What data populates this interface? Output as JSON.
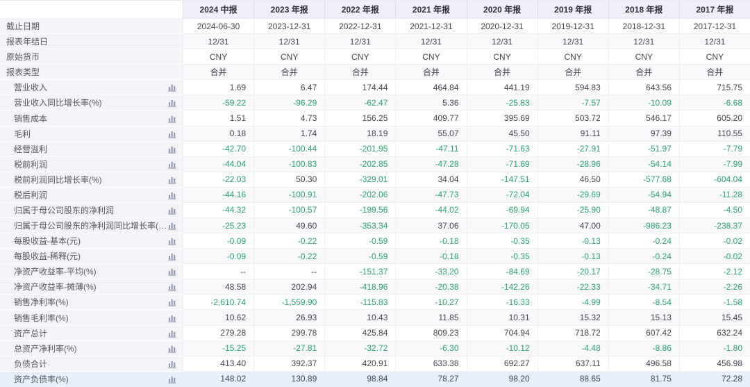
{
  "colors": {
    "negative_value": "#27a56f",
    "positive_value": "#44444f",
    "header_bg": "#efeff7",
    "label_column_bg": "#f4f4f8",
    "stripe_bg": "#f8f8fa",
    "highlight_row_bg": "#e6f0fa",
    "icon": "#8e97ad"
  },
  "table": {
    "columns": [
      "2024 中报",
      "2023 年报",
      "2022 年报",
      "2021 年报",
      "2020 年报",
      "2019 年报",
      "2018 年报",
      "2017 年报"
    ],
    "info_rows": [
      {
        "label": "截止日期",
        "values": [
          "2024-06-30",
          "2023-12-31",
          "2022-12-31",
          "2021-12-31",
          "2020-12-31",
          "2019-12-31",
          "2018-12-31",
          "2017-12-31"
        ]
      },
      {
        "label": "报表年结日",
        "values": [
          "12/31",
          "12/31",
          "12/31",
          "12/31",
          "12/31",
          "12/31",
          "12/31",
          "12/31"
        ]
      },
      {
        "label": "原始货币",
        "values": [
          "CNY",
          "CNY",
          "CNY",
          "CNY",
          "CNY",
          "CNY",
          "CNY",
          "CNY"
        ]
      },
      {
        "label": "报表类型",
        "values": [
          "合并",
          "合并",
          "合并",
          "合并",
          "合并",
          "合并",
          "合并",
          "合并"
        ]
      }
    ],
    "metric_rows": [
      {
        "label": "营业收入",
        "icon": "bar-chart-icon",
        "values": [
          "1.69",
          "6.47",
          "174.44",
          "464.84",
          "441.19",
          "594.83",
          "643.56",
          "715.75"
        ]
      },
      {
        "label": "营业收入同比增长率(%)",
        "icon": "bar-chart-icon",
        "values": [
          "-59.22",
          "-96.29",
          "-62.47",
          "5.36",
          "-25.83",
          "-7.57",
          "-10.09",
          "-6.68"
        ]
      },
      {
        "label": "销售成本",
        "icon": "bar-chart-icon",
        "values": [
          "1.51",
          "4.73",
          "156.25",
          "409.77",
          "395.69",
          "503.72",
          "546.17",
          "605.20"
        ]
      },
      {
        "label": "毛利",
        "icon": "bar-chart-icon",
        "values": [
          "0.18",
          "1.74",
          "18.19",
          "55.07",
          "45.50",
          "91.11",
          "97.39",
          "110.55"
        ]
      },
      {
        "label": "经营溢利",
        "icon": "bar-chart-icon",
        "values": [
          "-42.70",
          "-100.44",
          "-201.95",
          "-47.11",
          "-71.63",
          "-27.91",
          "-51.97",
          "-7.79"
        ]
      },
      {
        "label": "税前利润",
        "icon": "bar-chart-icon",
        "values": [
          "-44.04",
          "-100.83",
          "-202.85",
          "-47.28",
          "-71.69",
          "-28.96",
          "-54.14",
          "-7.99"
        ]
      },
      {
        "label": "税前利润同比增长率(%)",
        "icon": "bar-chart-icon",
        "values": [
          "-22.03",
          "50.30",
          "-329.01",
          "34.04",
          "-147.51",
          "46.50",
          "-577.68",
          "-604.04"
        ]
      },
      {
        "label": "税后利润",
        "icon": "bar-chart-icon",
        "values": [
          "-44.16",
          "-100.91",
          "-202.06",
          "-47.73",
          "-72.04",
          "-29.69",
          "-54.94",
          "-11.28"
        ]
      },
      {
        "label": "归属于母公司股东的净利润",
        "icon": "bar-chart-icon",
        "values": [
          "-44.32",
          "-100.57",
          "-199.56",
          "-44.02",
          "-69.94",
          "-25.90",
          "-48.87",
          "-4.50"
        ]
      },
      {
        "label": "归属于母公司股东的净利润同比增长率(%)",
        "icon": "bar-chart-icon",
        "values": [
          "-25.23",
          "49.60",
          "-353.34",
          "37.06",
          "-170.05",
          "47.00",
          "-986.23",
          "-238.37"
        ]
      },
      {
        "label": "每股收益-基本(元)",
        "icon": "bar-chart-icon",
        "values": [
          "-0.09",
          "-0.22",
          "-0.59",
          "-0.18",
          "-0.35",
          "-0.13",
          "-0.24",
          "-0.02"
        ]
      },
      {
        "label": "每股收益-稀释(元)",
        "icon": "bar-chart-icon",
        "values": [
          "-0.09",
          "-0.22",
          "-0.59",
          "-0.18",
          "-0.35",
          "-0.13",
          "-0.24",
          "-0.02"
        ]
      },
      {
        "label": "净资产收益率-平均(%)",
        "icon": "bar-chart-icon",
        "values": [
          "--",
          "--",
          "-151.37",
          "-33.20",
          "-84.69",
          "-20.17",
          "-28.75",
          "-2.12"
        ]
      },
      {
        "label": "净资产收益率-摊薄(%)",
        "icon": "bar-chart-icon",
        "values": [
          "48.58",
          "202.94",
          "-418.96",
          "-20.38",
          "-142.26",
          "-22.33",
          "-34.71",
          "-2.26"
        ]
      },
      {
        "label": "销售净利率(%)",
        "icon": "bar-chart-icon",
        "values": [
          "-2,610.74",
          "-1,559.90",
          "-115.83",
          "-10.27",
          "-16.33",
          "-4.99",
          "-8.54",
          "-1.58"
        ]
      },
      {
        "label": "销售毛利率(%)",
        "icon": "bar-chart-icon",
        "values": [
          "10.62",
          "26.93",
          "10.43",
          "11.85",
          "10.31",
          "15.32",
          "15.13",
          "15.45"
        ]
      },
      {
        "label": "资产总计",
        "icon": "bar-chart-icon",
        "values": [
          "279.28",
          "299.78",
          "425.84",
          "809.23",
          "704.94",
          "718.72",
          "607.42",
          "632.24"
        ]
      },
      {
        "label": "总资产净利率(%)",
        "icon": "bar-chart-icon",
        "values": [
          "-15.25",
          "-27.81",
          "-32.72",
          "-6.30",
          "-10.12",
          "-4.48",
          "-8.86",
          "-1.80"
        ]
      },
      {
        "label": "负债合计",
        "icon": "bar-chart-icon",
        "values": [
          "413.40",
          "392.37",
          "420.91",
          "633.38",
          "692.27",
          "637.11",
          "496.58",
          "456.98"
        ]
      },
      {
        "label": "资产负债率(%)",
        "icon": "bar-chart-icon",
        "values": [
          "148.02",
          "130.89",
          "98.84",
          "78.27",
          "98.20",
          "88.65",
          "81.75",
          "72.28"
        ],
        "highlighted": true
      }
    ]
  }
}
